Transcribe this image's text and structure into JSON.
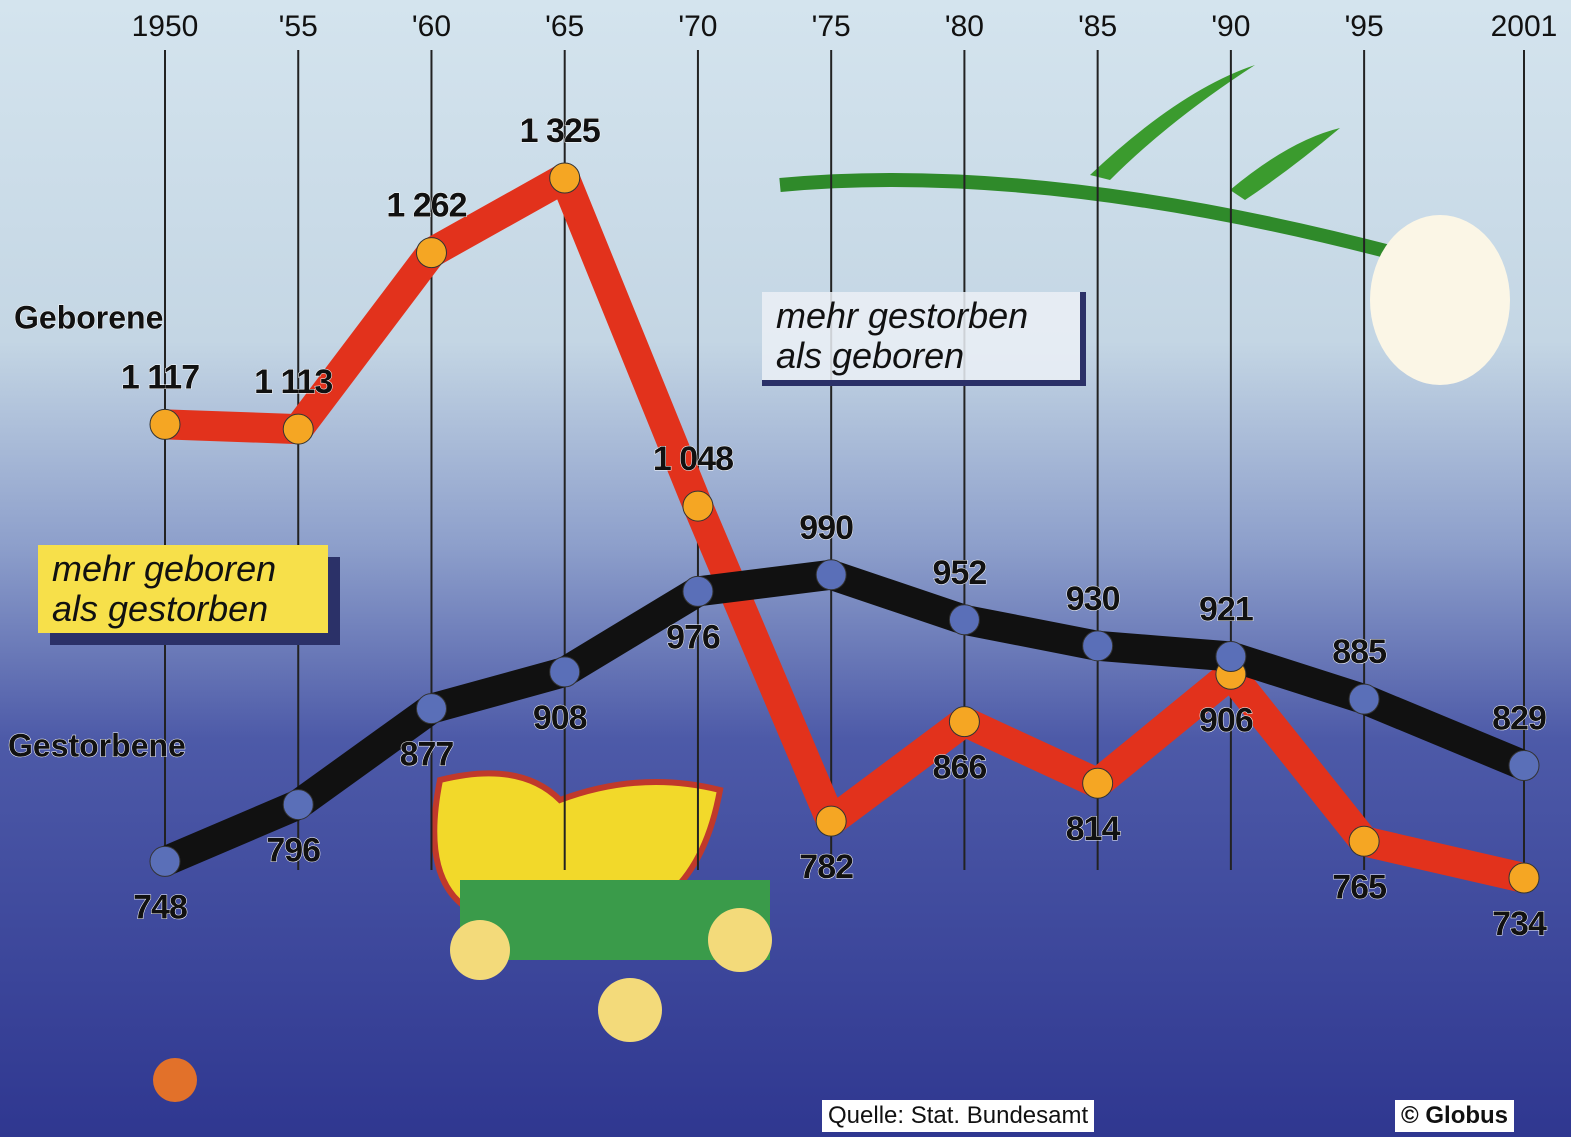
{
  "chart_data": {
    "type": "line",
    "x": [
      1950,
      1955,
      1960,
      1965,
      1970,
      1975,
      1980,
      1985,
      1990,
      1995,
      2001
    ],
    "xlim": [
      1950,
      2001
    ],
    "xticks": [
      1950,
      {
        "value": 1955,
        "label": "'55"
      },
      {
        "value": 1960,
        "label": "'60"
      },
      {
        "value": 1965,
        "label": "'65"
      },
      {
        "value": 1970,
        "label": "'70"
      },
      {
        "value": 1975,
        "label": "'75"
      },
      {
        "value": 1980,
        "label": "'80"
      },
      {
        "value": 1985,
        "label": "'85"
      },
      {
        "value": 1990,
        "label": "'90"
      },
      {
        "value": 1995,
        "label": "'95"
      },
      2001
    ],
    "grid": true,
    "series": [
      {
        "name": "Geborene",
        "color": "#e2321c",
        "marker_color": "#f5a623",
        "values": [
          1117,
          1113,
          1262,
          1325,
          1048,
          782,
          866,
          814,
          906,
          765,
          734
        ],
        "value_labels": [
          "1 117",
          "1 113",
          "1 262",
          "1 325",
          "1 048",
          "782",
          "866",
          "814",
          "906",
          "765",
          "734"
        ]
      },
      {
        "name": "Gestorbene",
        "color": "#111111",
        "marker_color": "#5a6fb8",
        "values": [
          748,
          796,
          877,
          908,
          976,
          990,
          952,
          930,
          921,
          885,
          829
        ]
      }
    ],
    "annotations": [
      "mehr geboren\nals gestorben",
      "mehr gestorben\nals geboren"
    ],
    "source": "Quelle: Stat. Bundesamt",
    "credit": "© Globus"
  }
}
